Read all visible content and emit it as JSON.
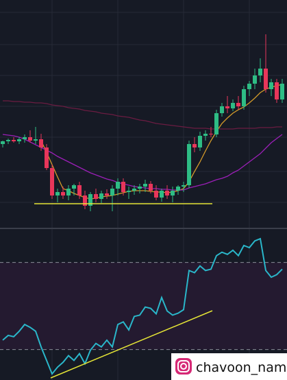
{
  "chart_data": [
    {
      "type": "candlestick",
      "ylim": [
        0,
        330
      ],
      "up_color": "#2ebd85",
      "down_color": "#e8365a",
      "open": [
        120,
        124,
        126,
        124,
        127,
        130,
        125,
        127,
        115,
        85,
        45,
        50,
        45,
        55,
        60,
        45,
        30,
        47,
        40,
        48,
        45,
        55,
        65,
        50,
        52,
        55,
        58,
        62,
        52,
        42,
        52,
        45,
        52,
        58,
        60,
        120,
        115,
        132,
        135,
        134,
        165,
        175,
        172,
        180,
        175,
        200,
        208,
        220,
        230,
        200,
        210,
        185
      ],
      "high": [
        125,
        128,
        130,
        130,
        134,
        140,
        145,
        135,
        120,
        90,
        55,
        58,
        60,
        62,
        65,
        52,
        50,
        55,
        52,
        54,
        60,
        70,
        70,
        58,
        60,
        62,
        68,
        66,
        60,
        55,
        60,
        58,
        60,
        65,
        125,
        130,
        138,
        140,
        145,
        170,
        180,
        190,
        185,
        190,
        205,
        212,
        230,
        245,
        280,
        215,
        215,
        215
      ],
      "low": [
        115,
        120,
        122,
        120,
        122,
        122,
        120,
        110,
        82,
        40,
        35,
        40,
        38,
        45,
        40,
        25,
        22,
        35,
        34,
        40,
        22,
        45,
        45,
        40,
        46,
        48,
        50,
        48,
        38,
        36,
        40,
        35,
        46,
        50,
        56,
        108,
        110,
        125,
        130,
        130,
        160,
        165,
        168,
        170,
        170,
        190,
        200,
        210,
        195,
        190,
        180,
        180
      ],
      "close": [
        124,
        126,
        124,
        127,
        130,
        125,
        127,
        115,
        85,
        45,
        50,
        45,
        55,
        60,
        45,
        30,
        47,
        40,
        48,
        45,
        55,
        65,
        50,
        52,
        55,
        58,
        62,
        52,
        42,
        52,
        45,
        52,
        58,
        60,
        120,
        115,
        132,
        135,
        134,
        165,
        175,
        172,
        180,
        175,
        200,
        208,
        220,
        230,
        200,
        210,
        185,
        208
      ],
      "moving_averages": [
        {
          "color": "#d49b2a",
          "values": [
            null,
            null,
            null,
            null,
            null,
            null,
            null,
            125,
            108,
            90,
            72,
            55,
            52,
            48,
            45,
            42,
            40,
            41,
            43,
            44,
            45,
            47,
            49,
            51,
            52,
            52,
            52,
            51,
            50,
            50,
            49,
            50,
            52,
            55,
            65,
            80,
            94,
            110,
            125,
            138,
            150,
            158,
            165,
            170,
            174,
            180,
            187,
            195,
            200,
            203,
            205,
            207
          ]
        },
        {
          "color": "#9c1fb8",
          "values": [
            134,
            133,
            132,
            130,
            127,
            123,
            119,
            115,
            111,
            107,
            102,
            98,
            94,
            90,
            86,
            82,
            78,
            75,
            72,
            69,
            67,
            64,
            62,
            60,
            58,
            57,
            56,
            55,
            55,
            54,
            54,
            53,
            53,
            53,
            56,
            58,
            60,
            62,
            65,
            68,
            70,
            73,
            78,
            82,
            88,
            94,
            100,
            106,
            114,
            122,
            128,
            134
          ]
        },
        {
          "color": "#6b1c42",
          "values": [
            183,
            183,
            182,
            182,
            181,
            181,
            180,
            180,
            179,
            177,
            176,
            175,
            173,
            172,
            171,
            169,
            168,
            167,
            165,
            164,
            163,
            161,
            160,
            159,
            157,
            155,
            154,
            152,
            150,
            149,
            148,
            147,
            146,
            145,
            144,
            143,
            143,
            143,
            142,
            142,
            142,
            142,
            142,
            143,
            143,
            143,
            143,
            144,
            144,
            144,
            145,
            145
          ]
        }
      ]
    },
    {
      "type": "line",
      "ylim": [
        16,
        85
      ],
      "levels": [
        30,
        70
      ],
      "color": "#2ab7ca",
      "values": [
        34.3,
        36.5,
        35.9,
        38.4,
        41.5,
        40.2,
        38.4,
        31.2,
        25.0,
        18.8,
        21.9,
        24.1,
        27.2,
        25.0,
        28.1,
        23.5,
        29.7,
        32.8,
        31.2,
        34.3,
        31.2,
        41.5,
        42.7,
        39.0,
        45.2,
        45.8,
        49.5,
        48.9,
        46.4,
        53.9,
        47.7,
        45.8,
        46.7,
        48.3,
        66.3,
        65.3,
        68.4,
        66.3,
        66.9,
        73.1,
        74.7,
        73.7,
        75.6,
        73.1,
        77.8,
        76.8,
        79.9,
        80.9,
        66.3,
        63.2,
        64.4,
        66.9
      ]
    }
  ],
  "watermark": "chavoon_nam"
}
